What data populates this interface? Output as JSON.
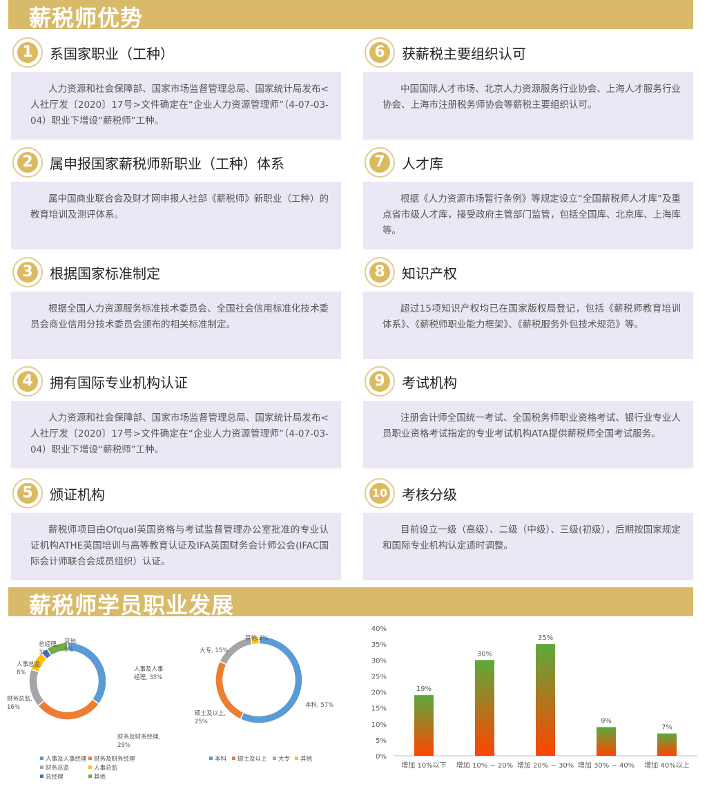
{
  "section1_title": "薪税师优势",
  "section2_title": "薪税师学员职业发展",
  "advantages": [
    {
      "num": "1",
      "title": "系国家职业（工种）",
      "text": "人力资源和社会保障部、国家市场监督管理总局、国家统计局发布<人社厅发〔2020〕17号>文件确定在“企业人力资源管理师”（4-07-03-04）职业下增设“薪税师”工种。"
    },
    {
      "num": "2",
      "title": "属申报国家薪税师新职业（工种）体系",
      "text": "属中国商业联合会及财才网申报人社部《薪税师》新职业（工种）的教育培训及测评体系。"
    },
    {
      "num": "3",
      "title": "根据国家标准制定",
      "text": "根据全国人力资源服务标准技术委员会、全国社会信用标准化技术委员会商业信用分技术委员会颁布的相关标准制定。"
    },
    {
      "num": "4",
      "title": "拥有国际专业机构认证",
      "text": "人力资源和社会保障部、国家市场监督管理总局、国家统计局发布<人社厅发〔2020〕17号>文件确定在“企业人力资源管理师”（4-07-03-04）职业下增设“薪税师”工种。"
    },
    {
      "num": "5",
      "title": "颁证机构",
      "text": "薪税师项目由Ofqual英国资格与考试监督管理办公室批准的专业认证机构ATHE英国培训与高等教育认证及IFA英国财务会计师公会(IFAC国际会计师联合会成员组织）认证。"
    },
    {
      "num": "6",
      "title": "获薪税主要组织认可",
      "text": "中国国际人才市场、北京人力资源服务行业协会、上海人才服务行业协会、上海市注册税务师协会等薪税主要组织认可。"
    },
    {
      "num": "7",
      "title": "人才库",
      "text": "根据《人力资源市场暂行条例》等规定设立“全国薪税师人才库”及重点省市级人才库，接受政府主管部门监管，包括全国库、北京库、上海库等。"
    },
    {
      "num": "8",
      "title": "知识产权",
      "text": "超过15项知识产权均已在国家版权局登记，包括《薪税师教育培训体系》、《薪税师职业能力框架》、《薪税服务外包技术规范》等。"
    },
    {
      "num": "9",
      "title": "考试机构",
      "text": "注册会计师全国统一考试、全国税务师职业资格考试、银行业专业人员职业资格考试指定的专业考试机构ATA提供薪税师全国考试服务。"
    },
    {
      "num": "10",
      "title": "考核分级",
      "text": "目前设立一级（高级）、二级（中级）、三级(初级），后期按国家规定和国际专业机构认定适时调整。"
    }
  ],
  "chart_data": [
    {
      "type": "pie",
      "title": "",
      "labels": [
        "人事及人事经理",
        "财务及财务经理",
        "财务总监",
        "人事总监",
        "总经理",
        "其他"
      ],
      "values": [
        35,
        29,
        16,
        8,
        3,
        9
      ],
      "slice_labels": [
        "人事及人事经理, 35%",
        "财务及财务经理, 29%",
        "财务总监, 16%",
        "人事总监, 8%",
        "总经理, 3%",
        "其他, 9%"
      ],
      "colors": [
        "#5b9bd5",
        "#ed7d31",
        "#a5a5a5",
        "#ffc000",
        "#4472c4",
        "#70ad47"
      ],
      "legend": "bottom"
    },
    {
      "type": "pie",
      "title": "",
      "labels": [
        "本科",
        "硕士及以上",
        "大专",
        "其他"
      ],
      "values": [
        57,
        25,
        15,
        3
      ],
      "slice_labels": [
        "本科, 57%",
        "硕士及以上, 25%",
        "大专, 15%",
        "其他,3%"
      ],
      "colors": [
        "#5b9bd5",
        "#ed7d31",
        "#a5a5a5",
        "#ffc000"
      ],
      "legend": "bottom"
    },
    {
      "type": "bar",
      "title": "",
      "categories": [
        "增加 10%以下",
        "增加 10% ~ 20%",
        "增加 20% ~ 30%",
        "增加 30% ~ 40%",
        "增加 40%以上"
      ],
      "values": [
        19,
        30,
        35,
        9,
        7
      ],
      "value_labels": [
        "19%",
        "30%",
        "35%",
        "9%",
        "7%"
      ],
      "yticks": [
        "0%",
        "5%",
        "10%",
        "15%",
        "20%",
        "25%",
        "30%",
        "35%",
        "40%"
      ],
      "ylim": [
        0,
        40
      ],
      "grid": false,
      "gradient_colors": [
        "#ff4500",
        "#5ca93d"
      ]
    }
  ]
}
